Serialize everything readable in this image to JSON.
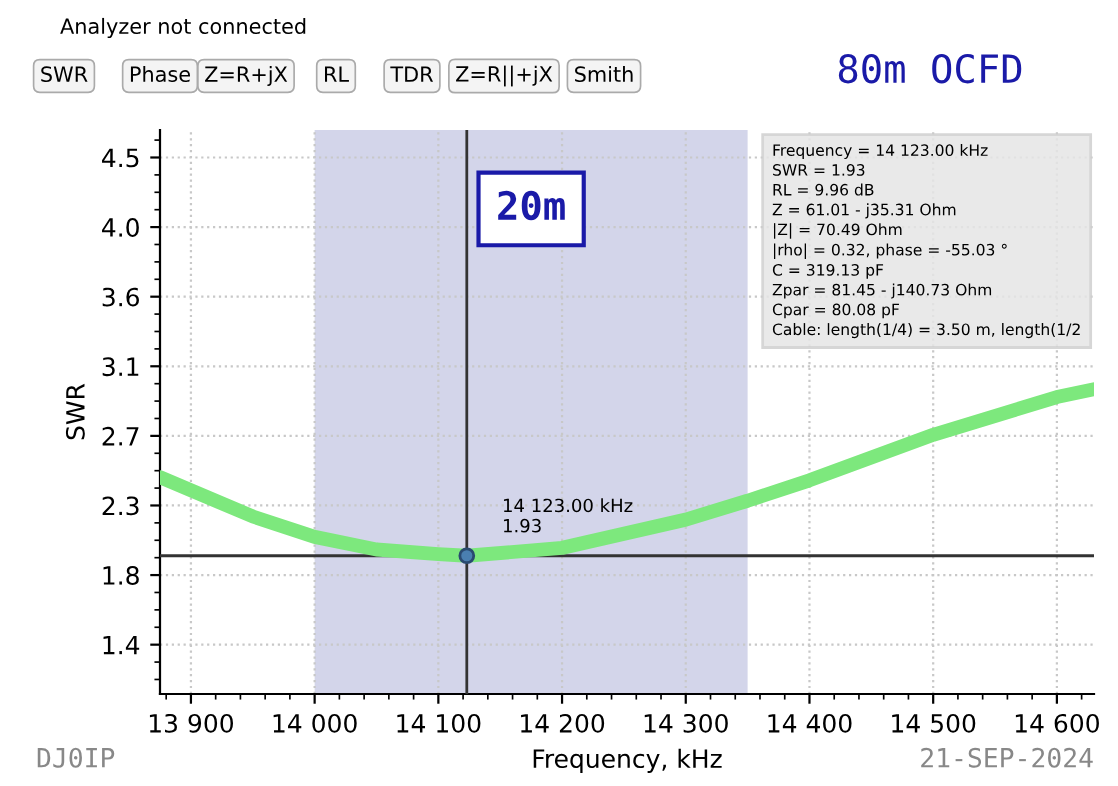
{
  "chart_data": {
    "type": "line",
    "title": "80m OCFD",
    "xlabel": "Frequency, kHz",
    "ylabel": "SWR",
    "x": [
      13875,
      13950,
      14000,
      14050,
      14100,
      14123,
      14200,
      14300,
      14350,
      14400,
      14500,
      14600,
      14630
    ],
    "series": [
      {
        "color": "#7de87d",
        "values": [
          2.43,
          2.18,
          2.05,
          1.97,
          1.94,
          1.93,
          1.98,
          2.16,
          2.28,
          2.41,
          2.7,
          2.94,
          2.99
        ]
      },
      {
        "type": "scatter",
        "color": "#4a7fb0",
        "x": [
          14123
        ],
        "values": [
          1.93
        ]
      }
    ],
    "xlim": [
      13875,
      14630
    ],
    "xticks": [
      {
        "value": 13900,
        "label": "13 900"
      },
      {
        "value": 14000,
        "label": "14 000"
      },
      {
        "value": 14100,
        "label": "14 100"
      },
      {
        "value": 14200,
        "label": "14 200"
      },
      {
        "value": 14300,
        "label": "14 300"
      },
      {
        "value": 14400,
        "label": "14 400"
      },
      {
        "value": 14500,
        "label": "14 500"
      },
      {
        "value": 14600,
        "label": "14 600"
      }
    ],
    "ylim": [
      1.05,
      4.64
    ],
    "yticks": [
      {
        "value": 1.364,
        "label": "1.4"
      },
      {
        "value": 1.807,
        "label": "1.8"
      },
      {
        "value": 2.25,
        "label": "2.3"
      },
      {
        "value": 2.693,
        "label": "2.7"
      },
      {
        "value": 3.136,
        "label": "3.1"
      },
      {
        "value": 3.579,
        "label": "3.6"
      },
      {
        "value": 4.022,
        "label": "4.0"
      },
      {
        "value": 4.465,
        "label": "4.5"
      }
    ],
    "grid": true,
    "bands": [
      {
        "axis": "x",
        "from": 14000,
        "to": 14350,
        "label": "20m",
        "color": "#d3d5ea"
      }
    ],
    "ref_lines": [
      {
        "axis": "x",
        "value": 14123,
        "color": "#333333"
      },
      {
        "axis": "y",
        "value": 1.93,
        "color": "#333333"
      }
    ],
    "annotations": [
      "14 123.00 kHz\n1.93",
      "Frequency = 14 123.00 kHz\nSWR = 1.93\nRL = 9.96 dB\nZ = 61.01 - j35.31 Ohm\n|Z| = 70.49 Ohm\n|rho| = 0.32, phase = -55.03 °\nC = 319.13 pF\nZpar = 81.45 - j140.73 Ohm\nCpar = 80.08 pF\nCable: length(1/4) = 3.50 m, length(1/2",
      "DJ0IP",
      "21-SEP-2024",
      "Analyzer not connected",
      "SWR",
      "Phase",
      "Z=R+jX",
      "RL",
      "TDR",
      "Z=R||+jX",
      "Smith"
    ]
  }
}
